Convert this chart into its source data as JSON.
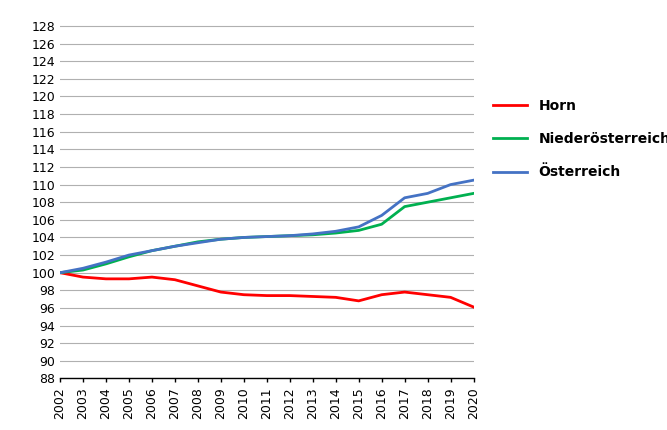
{
  "years": [
    2002,
    2003,
    2004,
    2005,
    2006,
    2007,
    2008,
    2009,
    2010,
    2011,
    2012,
    2013,
    2014,
    2015,
    2016,
    2017,
    2018,
    2019,
    2020
  ],
  "horn": [
    100.0,
    99.5,
    99.3,
    99.3,
    99.5,
    99.2,
    98.5,
    97.8,
    97.5,
    97.4,
    97.4,
    97.3,
    97.2,
    96.8,
    97.5,
    97.8,
    97.5,
    97.2,
    96.1
  ],
  "niederoesterreich": [
    100.0,
    100.3,
    101.0,
    101.8,
    102.5,
    103.0,
    103.5,
    103.8,
    104.0,
    104.1,
    104.2,
    104.3,
    104.5,
    104.8,
    105.5,
    107.5,
    108.0,
    108.5,
    109.0
  ],
  "oesterreich": [
    100.0,
    100.5,
    101.2,
    102.0,
    102.5,
    103.0,
    103.4,
    103.8,
    104.0,
    104.1,
    104.2,
    104.4,
    104.7,
    105.2,
    106.5,
    108.5,
    109.0,
    110.0,
    110.5
  ],
  "horn_color": "#ff0000",
  "niederoesterreich_color": "#00b050",
  "oesterreich_color": "#4472c4",
  "horn_label": "Horn",
  "niederoesterreich_label": "Niederösterreich",
  "oesterreich_label": "Österreich",
  "ylim": [
    88,
    129
  ],
  "yticks": [
    88,
    90,
    92,
    94,
    96,
    98,
    100,
    102,
    104,
    106,
    108,
    110,
    112,
    114,
    116,
    118,
    120,
    122,
    124,
    126,
    128
  ],
  "background_color": "#ffffff",
  "grid_color": "#b0b0b0",
  "linewidth": 2.0,
  "tick_fontsize": 9,
  "legend_fontsize": 10
}
